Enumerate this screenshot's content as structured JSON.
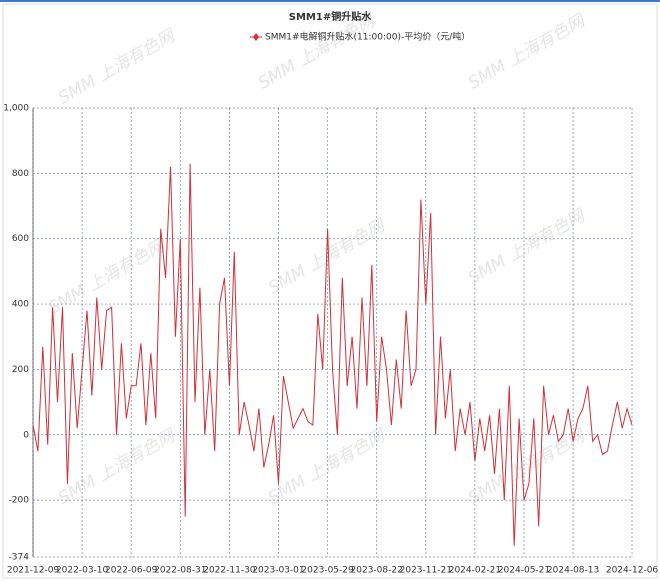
{
  "chart_data": {
    "type": "line",
    "title": "SMM1#铜升贴水",
    "watermark": "SMM 上海有色网",
    "categories": [
      "2021-12-09",
      null,
      null,
      null,
      null,
      null,
      null,
      null,
      null,
      null,
      "2022-03-10",
      null,
      null,
      null,
      null,
      null,
      null,
      null,
      null,
      null,
      "2022-06-09",
      null,
      null,
      null,
      null,
      null,
      null,
      null,
      null,
      null,
      "2022-08-31",
      null,
      null,
      null,
      null,
      null,
      null,
      null,
      null,
      null,
      "2022-11-30",
      null,
      null,
      null,
      null,
      null,
      null,
      null,
      null,
      null,
      "2023-03-01",
      null,
      null,
      null,
      null,
      null,
      null,
      null,
      null,
      null,
      "2023-05-29",
      null,
      null,
      null,
      null,
      null,
      null,
      null,
      null,
      null,
      "2023-08-22",
      null,
      null,
      null,
      null,
      null,
      null,
      null,
      null,
      null,
      "2023-11-21",
      null,
      null,
      null,
      null,
      null,
      null,
      null,
      null,
      null,
      "2024-02-21",
      null,
      null,
      null,
      null,
      null,
      null,
      null,
      null,
      null,
      "2024-05-21",
      null,
      null,
      null,
      null,
      null,
      null,
      null,
      null,
      null,
      "2024-08-13",
      null,
      null,
      null,
      null,
      null,
      null,
      null,
      null,
      null,
      null,
      null,
      "2024-12-06"
    ],
    "series": [
      {
        "name": "SMM1#电解铜升贴水(11:00:00)-平均价（元/吨）",
        "color": "#d0303a",
        "values": [
          30,
          -50,
          270,
          -30,
          390,
          100,
          390,
          -150,
          250,
          20,
          200,
          380,
          120,
          420,
          200,
          380,
          390,
          0,
          280,
          50,
          150,
          150,
          280,
          30,
          250,
          50,
          630,
          480,
          820,
          300,
          600,
          -250,
          830,
          100,
          450,
          0,
          200,
          -50,
          400,
          480,
          150,
          560,
          0,
          100,
          30,
          -50,
          80,
          -100,
          -30,
          60,
          -150,
          180,
          100,
          20,
          50,
          80,
          40,
          30,
          370,
          200,
          630,
          200,
          0,
          480,
          150,
          300,
          80,
          420,
          150,
          520,
          40,
          300,
          200,
          30,
          230,
          80,
          380,
          150,
          200,
          720,
          400,
          680,
          0,
          300,
          50,
          200,
          -50,
          80,
          0,
          100,
          -80,
          50,
          -50,
          60,
          -120,
          80,
          -200,
          150,
          -340,
          50,
          -200,
          -150,
          50,
          -280,
          150,
          0,
          60,
          -20,
          0,
          80,
          -20,
          50,
          80,
          150,
          -20,
          0,
          -60,
          -50,
          30,
          100,
          20,
          80,
          30
        ]
      }
    ],
    "ylim": [
      -374,
      1000
    ],
    "yticks": [
      -374,
      -200,
      0,
      200,
      400,
      600,
      800,
      {
        "value": 1000,
        "label": "1,000"
      }
    ],
    "grid": true
  }
}
